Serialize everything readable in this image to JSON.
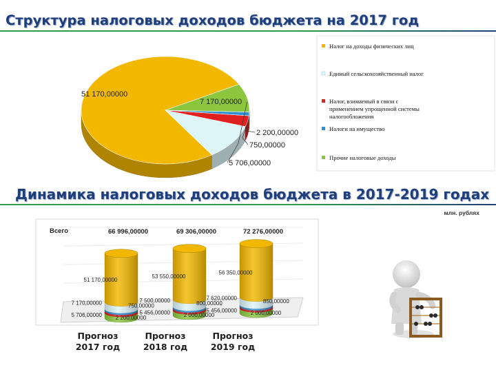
{
  "title_pie": "Структура налоговых доходов бюджета на 2017 год",
  "title_bar": "Динамика налоговых доходов бюджета в 2017-2019 годах",
  "units": "млн. рублях",
  "total_label": "Всего",
  "chart_data": [
    {
      "type": "pie",
      "title": "Структура налоговых доходов бюджета на 2017 год",
      "legend_position": "right",
      "slices": [
        {
          "name": "Налог на доходы физических лиц",
          "value": 51170,
          "label": "51 170,00000",
          "color": "#f2b800"
        },
        {
          "name": "Единый сельскохозяйственный налог",
          "value": 7170,
          "label": "7 170,00000",
          "color": "#ddf4f8"
        },
        {
          "name": "Налог, взимаемый в связи с применением упрощенной системы налогообложения",
          "value": 2200,
          "label": "2 200,00000",
          "color": "#e0201e"
        },
        {
          "name": "Налоги на имущество",
          "value": 750,
          "label": "750,00000",
          "color": "#2f8fd0"
        },
        {
          "name": "Прочие налоговые доходы",
          "value": 5706,
          "label": "5 706,00000",
          "color": "#8cc63f"
        }
      ]
    },
    {
      "type": "bar",
      "stacked": true,
      "title": "Динамика налоговых доходов бюджета в 2017-2019 годах",
      "categories": [
        "Прогноз 2017 год",
        "Прогноз 2018 год",
        "Прогноз 2019 год"
      ],
      "totals": [
        66996,
        69306,
        72276
      ],
      "total_labels": [
        "66 996,00000",
        "69 306,00000",
        "72 276,00000"
      ],
      "series": [
        {
          "name": "Прочие налоговые доходы",
          "values": [
            5706,
            5456,
            5456
          ],
          "labels": [
            "5 706,00000",
            "5 456,00000",
            "5 456,00000"
          ],
          "color": "#8cc63f"
        },
        {
          "name": "Налог, взимаемый в связи с применением упрощенной системы налогообложения",
          "values": [
            2200,
            2000,
            2000
          ],
          "labels": [
            "2 200,00000",
            "2 000,00000",
            "2 000,00000"
          ],
          "color": "#e0201e"
        },
        {
          "name": "Налоги на имущество",
          "values": [
            750,
            800,
            850
          ],
          "labels": [
            "750,00000",
            "800,00000",
            "850,00000"
          ],
          "color": "#2f8fd0"
        },
        {
          "name": "Единый сельскохозяйственный налог",
          "values": [
            7170,
            7500,
            7620
          ],
          "labels": [
            "7 170,00000",
            "7 500,00000",
            "7 620,00000"
          ],
          "color": "#ddf4f8"
        },
        {
          "name": "Налог на доходы физических лиц",
          "values": [
            51170,
            53550,
            56350
          ],
          "labels": [
            "51 170,00000",
            "53 550,00000",
            "56 350,00000"
          ],
          "color": "#f2b800"
        }
      ]
    }
  ],
  "categories_split": [
    [
      "Прогноз",
      "2017 год"
    ],
    [
      "Прогноз",
      "2018 год"
    ],
    [
      "Прогноз",
      "2019 год"
    ]
  ]
}
